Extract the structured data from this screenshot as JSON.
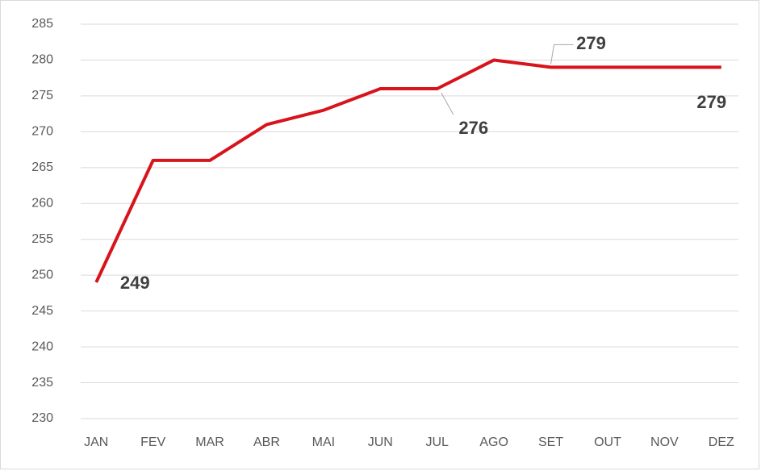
{
  "chart_data": {
    "type": "line",
    "categories": [
      "JAN",
      "FEV",
      "MAR",
      "ABR",
      "MAI",
      "JUN",
      "JUL",
      "AGO",
      "SET",
      "OUT",
      "NOV",
      "DEZ"
    ],
    "values": [
      249,
      266,
      266,
      271,
      273,
      276,
      276,
      280,
      279,
      279,
      279,
      279
    ],
    "value_labels": [
      "249",
      null,
      null,
      null,
      null,
      null,
      "276",
      null,
      "279",
      null,
      null,
      "279"
    ],
    "color": "#d7141c",
    "ylim": [
      230,
      285
    ],
    "yticks": [
      230,
      235,
      240,
      245,
      250,
      255,
      260,
      265,
      270,
      275,
      280,
      285
    ],
    "grid": true
  }
}
